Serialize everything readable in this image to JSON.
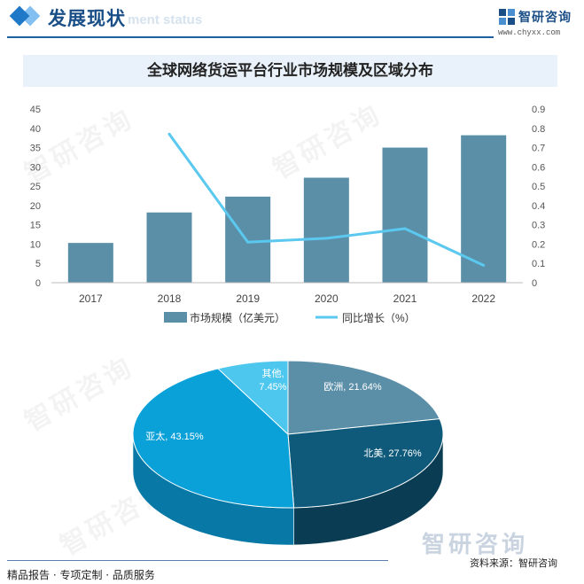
{
  "header": {
    "title": "发展现状",
    "subtitle_ghost": "ment status",
    "brand_name": "智研咨询",
    "brand_url": "www.chyxx.com"
  },
  "chart_title": "全球网络货运平台行业市场规模及区域分布",
  "chart_data": [
    {
      "type": "bar",
      "categories": [
        "2017",
        "2018",
        "2019",
        "2020",
        "2021",
        "2022"
      ],
      "series": [
        {
          "name": "市场规模（亿美元）",
          "type": "bar",
          "axis": "left",
          "values": [
            10.3,
            18.2,
            22.3,
            27.2,
            35.0,
            38.2
          ],
          "color": "#5b8fa8"
        },
        {
          "name": "同比增长（%）",
          "type": "line",
          "axis": "right",
          "values": [
            null,
            0.77,
            0.21,
            0.23,
            0.28,
            0.09
          ],
          "color": "#5bc8ef"
        }
      ],
      "y_left": {
        "min": 0,
        "max": 45,
        "ticks": [
          "0",
          "5",
          "10",
          "15",
          "20",
          "25",
          "30",
          "35",
          "40",
          "45"
        ]
      },
      "y_right": {
        "min": 0,
        "max": 0.9,
        "ticks": [
          "0",
          "0.1",
          "0.2",
          "0.3",
          "0.4",
          "0.5",
          "0.6",
          "0.7",
          "0.8",
          "0.9"
        ]
      },
      "grid": false,
      "legend_position": "bottom"
    },
    {
      "type": "pie",
      "style": "3d",
      "slices": [
        {
          "label": "欧洲",
          "value": 21.64,
          "text": "欧洲, 21.64%",
          "color": "#5b8fa8",
          "side": "#3f6b80"
        },
        {
          "label": "北美",
          "value": 27.76,
          "text": "北美, 27.76%",
          "color": "#0f5a7a",
          "side": "#0a3d54"
        },
        {
          "label": "亚太",
          "value": 43.15,
          "text": "亚太, 43.15%",
          "color": "#0aa0d8",
          "side": "#0879a6"
        },
        {
          "label": "其他",
          "value": 7.45,
          "text_line1": "其他,",
          "text_line2": "7.45%",
          "color": "#4ec7ee",
          "side": "#33a3c9"
        }
      ]
    }
  ],
  "footer": {
    "left": "精品报告 · 专项定制 · 品质服务",
    "right": "资料来源：智研咨询",
    "logo": "智研咨询"
  },
  "watermark": "智研咨询"
}
